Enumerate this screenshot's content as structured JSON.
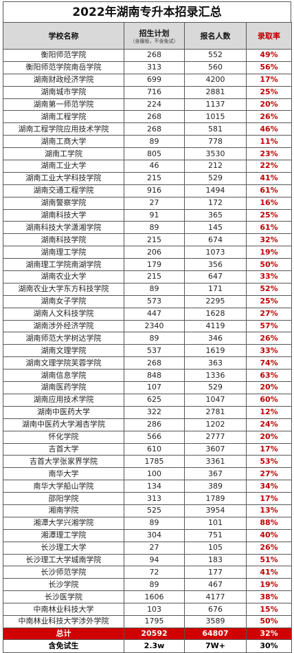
{
  "title": "2022年湖南专升本招录汇总",
  "headers": {
    "school": "学校名称",
    "plan": "招生计划",
    "plan_note": "（含服役，不含免试）",
    "applicants": "报名人数",
    "rate": "录取率"
  },
  "rows": [
    [
      "衡阳师范学院",
      "268",
      "552",
      "49%"
    ],
    [
      "衡阳师范学院南岳学院",
      "313",
      "560",
      "56%"
    ],
    [
      "湖南财政经济学院",
      "699",
      "4200",
      "17%"
    ],
    [
      "湖南城市学院",
      "716",
      "2881",
      "25%"
    ],
    [
      "湖南第一师范学院",
      "224",
      "1137",
      "20%"
    ],
    [
      "湖南工程学院",
      "268",
      "1015",
      "26%"
    ],
    [
      "湖南工程学院应用技术学院",
      "268",
      "581",
      "46%"
    ],
    [
      "湖南工商大学",
      "89",
      "778",
      "11%"
    ],
    [
      "湖南工学院",
      "805",
      "3530",
      "23%"
    ],
    [
      "湖南工业大学",
      "46",
      "212",
      "22%"
    ],
    [
      "湖南工业大学科技学院",
      "215",
      "529",
      "41%"
    ],
    [
      "湖南交通工程学院",
      "916",
      "1494",
      "61%"
    ],
    [
      "湖南警察学院",
      "27",
      "172",
      "16%"
    ],
    [
      "湖南科技大学",
      "91",
      "365",
      "25%"
    ],
    [
      "湖南科技大学潇湘学院",
      "89",
      "145",
      "61%"
    ],
    [
      "湖南科技学院",
      "215",
      "674",
      "32%"
    ],
    [
      "湖南理工学院",
      "206",
      "1073",
      "19%"
    ],
    [
      "湖南理工学院南湖学院",
      "179",
      "356",
      "50%"
    ],
    [
      "湖南农业大学",
      "215",
      "647",
      "33%"
    ],
    [
      "湖南农业大学东方科技学院",
      "89",
      "171",
      "52%"
    ],
    [
      "湖南女子学院",
      "573",
      "2295",
      "25%"
    ],
    [
      "湖南人文科技学院",
      "447",
      "1628",
      "27%"
    ],
    [
      "湖南涉外经济学院",
      "2340",
      "4119",
      "57%"
    ],
    [
      "湖南师范大学树达学院",
      "89",
      "346",
      "26%"
    ],
    [
      "湖南文理学院",
      "537",
      "1619",
      "33%"
    ],
    [
      "湖南文理学院芙蓉学院",
      "268",
      "363",
      "74%"
    ],
    [
      "湖南信息学院",
      "848",
      "1336",
      "63%"
    ],
    [
      "湖南医药学院",
      "107",
      "529",
      "20%"
    ],
    [
      "湖南应用技术学院",
      "625",
      "1047",
      "60%"
    ],
    [
      "湖南中医药大学",
      "322",
      "2781",
      "12%"
    ],
    [
      "湖南中医药大学湘杏学院",
      "286",
      "1202",
      "24%"
    ],
    [
      "怀化学院",
      "566",
      "2777",
      "20%"
    ],
    [
      "吉首大学",
      "610",
      "3607",
      "17%"
    ],
    [
      "吉首大学张家界学院",
      "1785",
      "3361",
      "53%"
    ],
    [
      "南华大学",
      "100",
      "367",
      "27%"
    ],
    [
      "南华大学船山学院",
      "134",
      "389",
      "34%"
    ],
    [
      "邵阳学院",
      "313",
      "1789",
      "17%"
    ],
    [
      "湘南学院",
      "525",
      "3954",
      "13%"
    ],
    [
      "湘潭大学兴湘学院",
      "89",
      "101",
      "88%"
    ],
    [
      "湘潭理工学院",
      "304",
      "751",
      "40%"
    ],
    [
      "长沙理工大学",
      "27",
      "105",
      "26%"
    ],
    [
      "长沙理工大学城南学院",
      "94",
      "183",
      "51%"
    ],
    [
      "长沙师范学院",
      "72",
      "177",
      "41%"
    ],
    [
      "长沙学院",
      "89",
      "467",
      "19%"
    ],
    [
      "长沙医学院",
      "1606",
      "4177",
      "38%"
    ],
    [
      "中南林业科技大学",
      "103",
      "676",
      "15%"
    ],
    [
      "中南林业科技大学涉外学院",
      "1795",
      "3589",
      "50%"
    ]
  ],
  "total": [
    "总计",
    "20592",
    "64807",
    "32%"
  ],
  "exempt": [
    "含免试生",
    "2.3w",
    "7W+",
    "30%"
  ],
  "colors": {
    "rate": "#c00000",
    "total_bg": "#d00000",
    "header_bg": "#d9d9d9"
  }
}
